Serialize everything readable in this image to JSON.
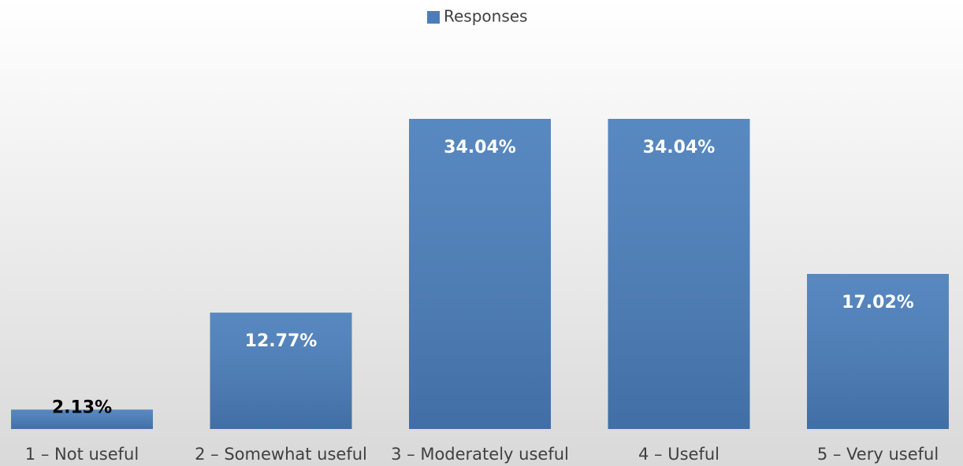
{
  "chart_data": {
    "type": "bar",
    "legend": "top",
    "categories": [
      "1 – Not useful",
      "2 – Somewhat useful",
      "3 – Moderately useful",
      "4 – Useful",
      "5 – Very useful"
    ],
    "series": [
      {
        "name": "Responses",
        "color": "#4a7ebb",
        "values": [
          2.13,
          12.77,
          34.04,
          34.04,
          17.02
        ],
        "value_labels": [
          "2.13%",
          "12.77%",
          "34.04%",
          "34.04%",
          "17.02%"
        ]
      }
    ]
  }
}
